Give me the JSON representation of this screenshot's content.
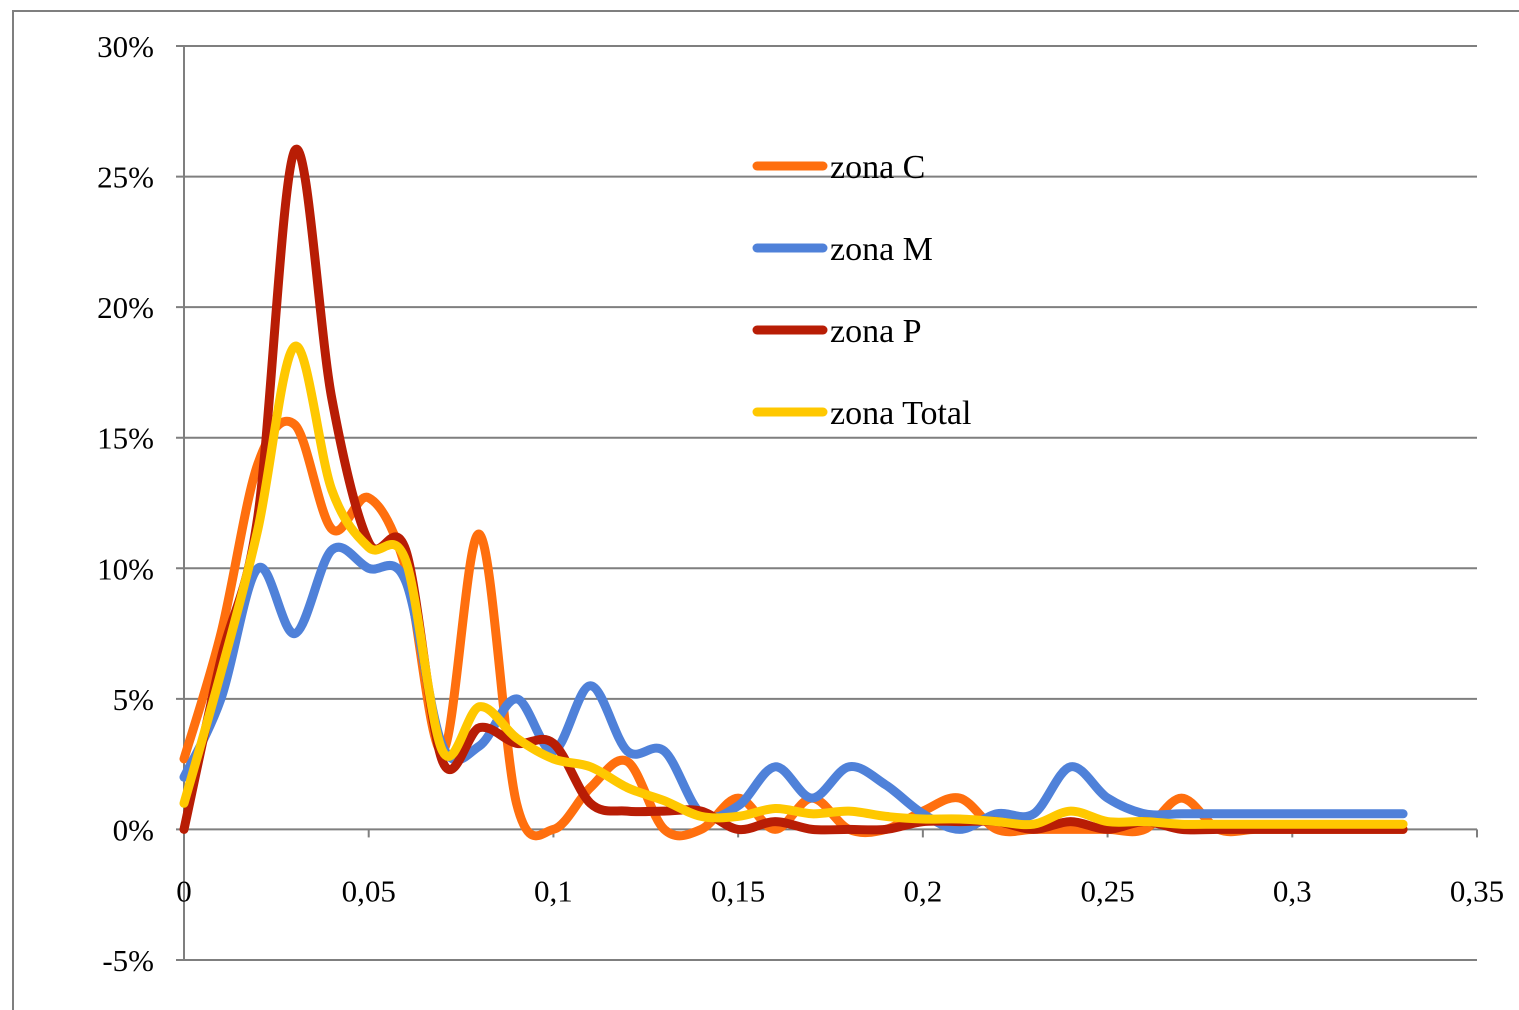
{
  "chart_data": {
    "type": "line",
    "title": "",
    "xlabel": "",
    "ylabel": "",
    "xlim": [
      0,
      0.35
    ],
    "ylim": [
      -5,
      30
    ],
    "x_ticks": [
      "0",
      "0,05",
      "0,1",
      "0,15",
      "0,2",
      "0,25",
      "0,3",
      "0,35"
    ],
    "y_ticks": [
      "-5%",
      "0%",
      "5%",
      "10%",
      "15%",
      "20%",
      "25%",
      "30%"
    ],
    "grid": true,
    "legend_position": "top-center",
    "x": [
      0,
      0.01,
      0.02,
      0.03,
      0.04,
      0.05,
      0.06,
      0.07,
      0.08,
      0.09,
      0.1,
      0.11,
      0.12,
      0.13,
      0.14,
      0.15,
      0.16,
      0.17,
      0.18,
      0.19,
      0.2,
      0.21,
      0.22,
      0.23,
      0.24,
      0.25,
      0.26,
      0.27,
      0.28,
      0.29,
      0.3,
      0.31,
      0.32,
      0.33
    ],
    "series": [
      {
        "name": "zona C",
        "color": "#ff6f0e",
        "values": [
          2.7,
          7.5,
          14.0,
          15.5,
          11.5,
          12.7,
          10.0,
          3.0,
          11.3,
          1.0,
          0.0,
          1.6,
          2.6,
          0.0,
          0.0,
          1.2,
          0.0,
          1.2,
          0.0,
          0.0,
          0.7,
          1.2,
          0.0,
          0.0,
          0.0,
          0.0,
          0.0,
          1.2,
          0.0,
          0.0,
          0.0,
          0.0,
          0.0,
          0.0
        ]
      },
      {
        "name": "zona M",
        "color": "#4f81d9",
        "values": [
          2.0,
          5.0,
          10.0,
          7.5,
          10.7,
          10.0,
          9.5,
          3.2,
          3.2,
          5.0,
          3.0,
          5.5,
          3.0,
          3.0,
          0.6,
          0.9,
          2.4,
          1.2,
          2.4,
          1.7,
          0.6,
          0.0,
          0.6,
          0.6,
          2.4,
          1.2,
          0.6,
          0.6,
          0.6,
          0.6,
          0.6,
          0.6,
          0.6,
          0.6
        ]
      },
      {
        "name": "zona P",
        "color": "#b81d05",
        "values": [
          0.0,
          6.5,
          12.0,
          26.0,
          16.5,
          11.0,
          10.7,
          2.6,
          3.9,
          3.3,
          3.3,
          1.0,
          0.7,
          0.7,
          0.7,
          0.0,
          0.3,
          0.0,
          0.0,
          0.0,
          0.3,
          0.3,
          0.3,
          0.0,
          0.3,
          0.0,
          0.3,
          0.0,
          0.0,
          0.0,
          0.0,
          0.0,
          0.0,
          0.0
        ]
      },
      {
        "name": "zona Total",
        "color": "#ffc800",
        "values": [
          1.0,
          6.0,
          11.5,
          18.5,
          13.0,
          10.8,
          10.3,
          3.0,
          4.7,
          3.5,
          2.7,
          2.4,
          1.6,
          1.1,
          0.5,
          0.5,
          0.8,
          0.6,
          0.7,
          0.5,
          0.4,
          0.4,
          0.3,
          0.2,
          0.7,
          0.3,
          0.3,
          0.2,
          0.2,
          0.2,
          0.2,
          0.2,
          0.2,
          0.2
        ]
      }
    ]
  },
  "colors": {
    "grid": "#7f7f7f",
    "axis": "#7f7f7f",
    "frame": "#7f7f7f"
  }
}
